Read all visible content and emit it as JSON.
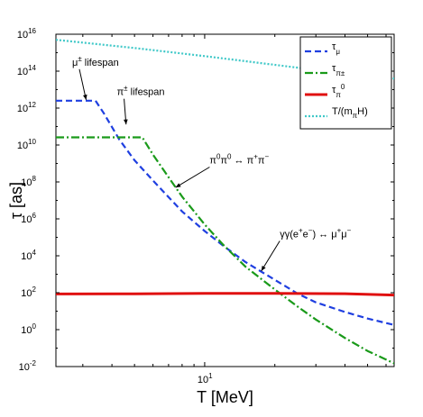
{
  "chart_data": {
    "type": "line",
    "xlabel": "T [MeV]",
    "ylabel": "τ [as]",
    "x_scale": "log",
    "y_scale": "log",
    "xlim": [
      2.3,
      65
    ],
    "ylim": [
      0.01,
      1e+16
    ],
    "y_ticks": [
      {
        "value": 0.01,
        "base": "10",
        "exp": "-2"
      },
      {
        "value": 1,
        "base": "10",
        "exp": "0"
      },
      {
        "value": 100,
        "base": "10",
        "exp": "2"
      },
      {
        "value": 10000,
        "base": "10",
        "exp": "4"
      },
      {
        "value": 1000000,
        "base": "10",
        "exp": "6"
      },
      {
        "value": 100000000,
        "base": "10",
        "exp": "8"
      },
      {
        "value": 10000000000,
        "base": "10",
        "exp": "10"
      },
      {
        "value": 1000000000000,
        "base": "10",
        "exp": "12"
      },
      {
        "value": 100000000000000,
        "base": "10",
        "exp": "14"
      },
      {
        "value": 10000000000000000,
        "base": "10",
        "exp": "16"
      }
    ],
    "x_ticks": [
      {
        "value": 10,
        "base": "10",
        "exp": "1"
      }
    ],
    "grid": false,
    "legend_position": "top-right",
    "series": [
      {
        "name": "τ_μ",
        "legend_base": "τ",
        "legend_sub": "μ",
        "color": "#1f3fe0",
        "dash": "7,4",
        "x": [
          2.3,
          3.4,
          3.7,
          4.3,
          5.0,
          6.0,
          7.0,
          8.0,
          10.0,
          12.0,
          15.0,
          20.0,
          25.0,
          30.0,
          40.0,
          50.0,
          65.0
        ],
        "y": [
          2500000000000.0,
          2500000000000.0,
          500000000000.0,
          20000000000.0,
          1500000000.0,
          120000000.0,
          15000000.0,
          2500000.0,
          220000.0,
          35000.0,
          4500,
          500,
          90,
          30,
          9,
          4,
          1.8
        ]
      },
      {
        "name": "τ_π±",
        "legend_base": "τ",
        "legend_sub": "π±",
        "color": "#1a9a1a",
        "dash": "9,3,2,3",
        "x": [
          2.3,
          5.4,
          6.0,
          7.0,
          8.0,
          10.0,
          12.0,
          15.0,
          20.0,
          25.0,
          30.0,
          40.0,
          50.0,
          65.0
        ],
        "y": [
          26000000000.0,
          26000000000.0,
          3000000000.0,
          180000000.0,
          16000000.0,
          500000.0,
          40000.0,
          2500,
          150,
          18,
          3.5,
          0.35,
          0.07,
          0.015
        ]
      },
      {
        "name": "τ_π0",
        "legend_base": "τ",
        "legend_sub": "π",
        "legend_sup": "0",
        "color": "#e01010",
        "dash": "",
        "x": [
          2.3,
          5.0,
          10.0,
          20.0,
          40.0,
          65.0
        ],
        "y": [
          85,
          87,
          92,
          92,
          88,
          75
        ]
      },
      {
        "name": "T/(m_πH)",
        "legend_label": "T/(m",
        "legend_sub": "π",
        "legend_tail": "H)",
        "color": "#3fc8c8",
        "dash": "2,2",
        "x": [
          2.3,
          5.0,
          10.0,
          20.0,
          40.0,
          65.0
        ],
        "y": [
          5000000000000000.0,
          1800000000000000.0,
          650000000000000.0,
          220000000000000.0,
          75000000000000.0,
          40000000000000.0
        ]
      }
    ],
    "annotations": [
      {
        "label": "μ",
        "sup": "±",
        "tail": " lifespan",
        "x": 2.7,
        "y": 200000000000000.0,
        "ax": 3.1,
        "ay": 2800000000000.0
      },
      {
        "label": "π",
        "sup": "±",
        "tail": " lifespan",
        "x": 4.2,
        "y": 5000000000000.0,
        "ax": 4.6,
        "ay": 130000000000.0
      },
      {
        "label": "π",
        "sup": "0",
        "label2": "π",
        "sup2": "0",
        "mid": " ↔ ",
        "label3": "π",
        "sup3": "+",
        "label4": "π",
        "sup4": "−",
        "x": 10.5,
        "y": 1000000000.0,
        "ax": 7.5,
        "ay": 50000000.0
      },
      {
        "label": "γγ(e",
        "sup": "+",
        "label2": "e",
        "sup2": "−",
        "mid": ") ↔ ",
        "label3": "μ",
        "sup3": "+",
        "label4": "μ",
        "sup4": "−",
        "x": 21.0,
        "y": 100000.0,
        "ax": 17.5,
        "ay": 1500.0
      }
    ]
  }
}
